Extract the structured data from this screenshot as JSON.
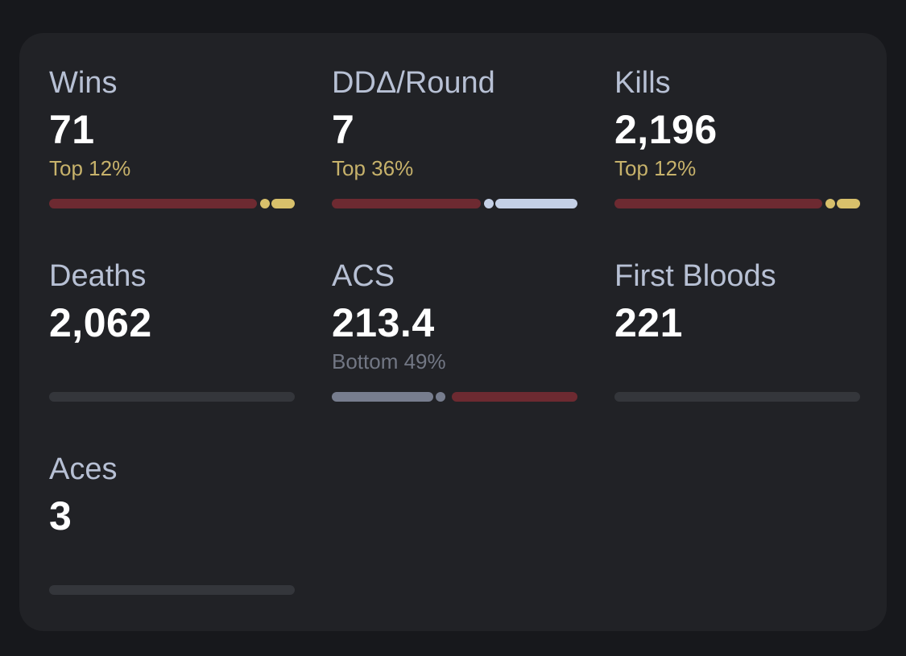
{
  "colors": {
    "background": "#17181c",
    "card": "#212226",
    "label": "#b7c0d4",
    "value": "#ffffff",
    "rank_top": "#c7b26b",
    "rank_bottom": "#727784",
    "bar_red": "#6d2a31",
    "bar_gold": "#d8c06b",
    "bar_light": "#c4d0e6",
    "bar_gray": "#777d8e",
    "bar_empty": "#34363b"
  },
  "stats": [
    {
      "label": "Wins",
      "value": "71",
      "rank": "Top 12%",
      "rank_type": "top",
      "percentile": 0.88,
      "bar_style": "top"
    },
    {
      "label": "DDΔ/Round",
      "value": "7",
      "rank": "Top 36%",
      "rank_type": "top",
      "percentile": 0.64,
      "bar_style": "mid"
    },
    {
      "label": "Kills",
      "value": "2,196",
      "rank": "Top 12%",
      "rank_type": "top",
      "percentile": 0.88,
      "bar_style": "top"
    },
    {
      "label": "Deaths",
      "value": "2,062",
      "rank": "",
      "rank_type": "none",
      "percentile": null,
      "bar_style": "empty"
    },
    {
      "label": "ACS",
      "value": "213.4",
      "rank": "Bottom 49%",
      "rank_type": "bottom",
      "percentile": 0.51,
      "bar_style": "bottom"
    },
    {
      "label": "First Bloods",
      "value": "221",
      "rank": "",
      "rank_type": "none",
      "percentile": null,
      "bar_style": "empty"
    },
    {
      "label": "Aces",
      "value": "3",
      "rank": "",
      "rank_type": "none",
      "percentile": null,
      "bar_style": "empty"
    }
  ]
}
